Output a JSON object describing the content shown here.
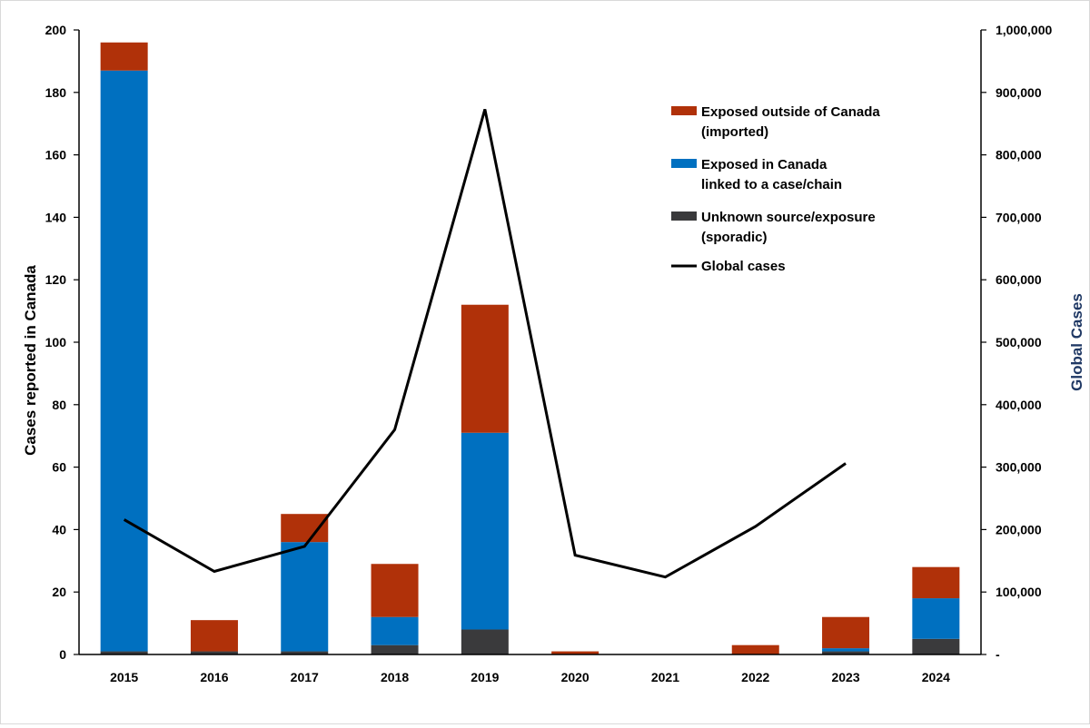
{
  "chart_data": {
    "type": "bar",
    "stacked": true,
    "categories": [
      "2015",
      "2016",
      "2017",
      "2018",
      "2019",
      "2020",
      "2021",
      "2022",
      "2023",
      "2024"
    ],
    "series": [
      {
        "name_lines": [
          "Unknown source/exposure",
          "(sporadic)"
        ],
        "color": "#3a3a3c",
        "values": [
          1,
          1,
          1,
          3,
          8,
          0,
          0,
          0,
          1,
          5
        ]
      },
      {
        "name_lines": [
          "Exposed in Canada",
          "linked to a case/chain"
        ],
        "color": "#0070c0",
        "values": [
          186,
          0,
          35,
          9,
          63,
          0,
          0,
          0,
          1,
          13
        ]
      },
      {
        "name_lines": [
          "Exposed outside of Canada",
          "(imported)"
        ],
        "color": "#b03109",
        "values": [
          9,
          10,
          9,
          17,
          41,
          1,
          0,
          3,
          10,
          10
        ]
      }
    ],
    "line_series": {
      "name": "Global cases",
      "color": "#000000",
      "axis": "right",
      "x": [
        "2015",
        "2016",
        "2017",
        "2018",
        "2019",
        "2020",
        "2021",
        "2022",
        "2023"
      ],
      "values": [
        216000,
        133000,
        173000,
        360000,
        873000,
        159000,
        124000,
        205000,
        306000
      ]
    },
    "ylabel": "Cases reported in Canada",
    "ylabel_color": "#000000",
    "y2label": "Global Cases",
    "y2label_color": "#1f3864",
    "ylim": [
      0,
      200
    ],
    "yticks": [
      0,
      20,
      40,
      60,
      80,
      100,
      120,
      140,
      160,
      180,
      200
    ],
    "y2lim": [
      0,
      1000000
    ],
    "y2ticks": [
      "-",
      "100,000",
      "200,000",
      "300,000",
      "400,000",
      "500,000",
      "600,000",
      "700,000",
      "800,000",
      "900,000",
      "1,000,000"
    ],
    "grid": false,
    "legend_order": [
      "Exposed outside of Canada",
      "Exposed in Canada",
      "Unknown source/exposure",
      "Global cases"
    ],
    "legend_position": "top-right"
  }
}
